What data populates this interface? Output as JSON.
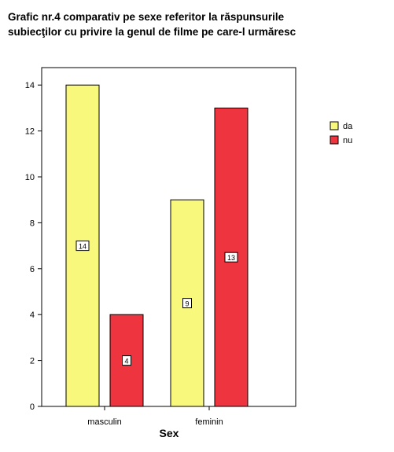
{
  "title_lines": [
    "Grafic nr.4 comparativ pe sexe referitor la răspunsurile",
    "subiecţilor cu privire la genul de filme pe care-l urmăresc"
  ],
  "chart_data": {
    "type": "bar",
    "title": "Grafic nr.4 comparativ pe sexe referitor la răspunsurile subiecţilor cu privire la genul de filme pe care-l urmăresc",
    "xlabel": "Sex",
    "ylabel": "",
    "categories": [
      "masculin",
      "feminin"
    ],
    "series": [
      {
        "name": "da",
        "values": [
          14,
          9
        ],
        "color": "#f8f87c"
      },
      {
        "name": "nu",
        "values": [
          4,
          13
        ],
        "color": "#ee343e"
      }
    ],
    "ylim": [
      0,
      14.5
    ],
    "yticks": [
      "0",
      "2",
      "4",
      "6",
      "8",
      "10",
      "12",
      "14"
    ],
    "data_labels": true,
    "grid": false,
    "legend_position": "right"
  }
}
